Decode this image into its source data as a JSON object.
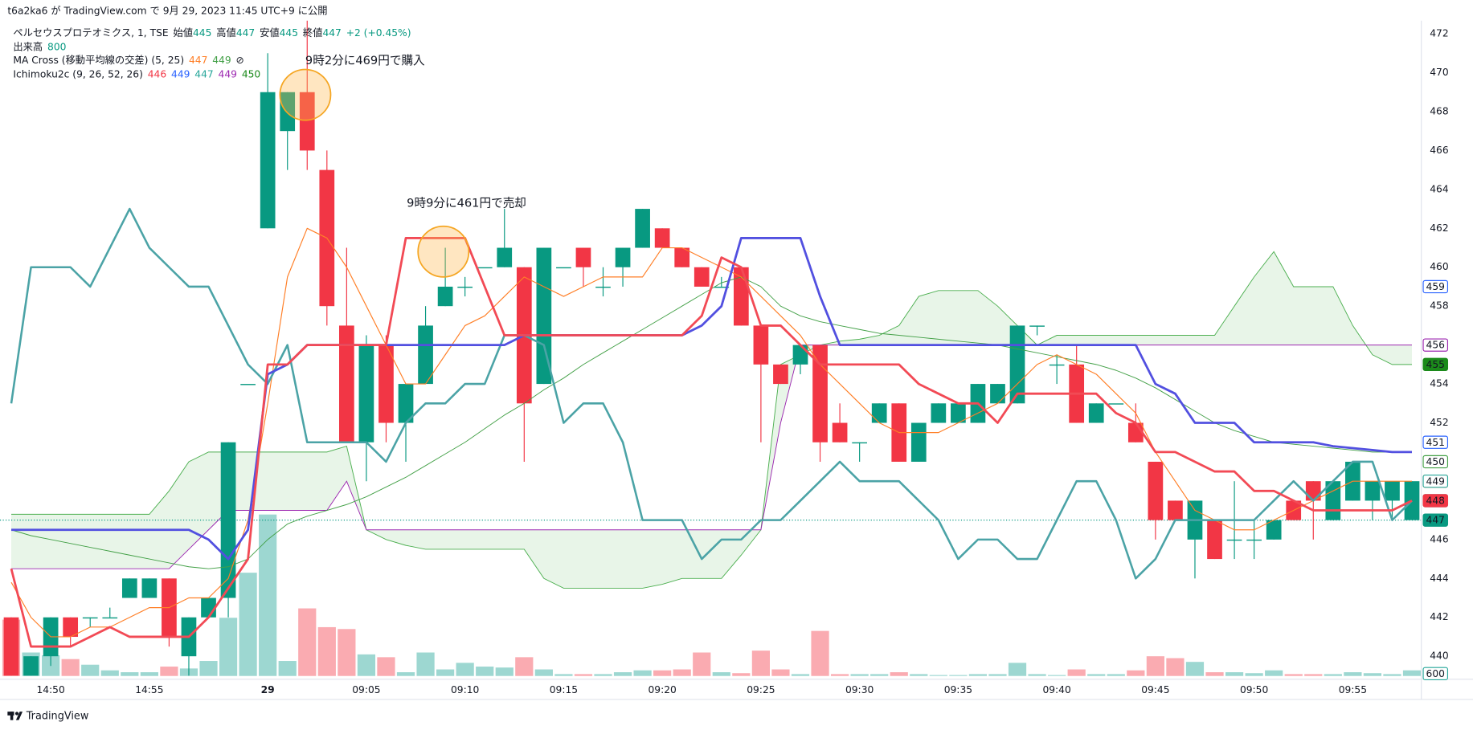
{
  "chart_data": {
    "type": "candlestick",
    "header": {
      "published": "t6a2ka6 が TradingView.com で 9月 29, 2023 11:45 UTC+9 に公開"
    },
    "legend": [
      [
        {
          "text": "ペルセウスプロテオミクス, 1, TSE",
          "color": "#131722"
        },
        {
          "text": "始値",
          "color": "#131722"
        },
        {
          "value": 445,
          "color": "#089981"
        },
        {
          "text": "高値",
          "color": "#131722"
        },
        {
          "value": 447,
          "color": "#089981"
        },
        {
          "text": "安値",
          "color": "#131722"
        },
        {
          "value": 445,
          "color": "#089981"
        },
        {
          "text": "終値",
          "color": "#131722"
        },
        {
          "value": 447,
          "color": "#089981"
        },
        {
          "text": "+2 (+0.45%)",
          "color": "#089981"
        }
      ],
      [
        {
          "text": "出来高",
          "color": "#131722"
        },
        {
          "value": 800,
          "color": "#089981"
        }
      ],
      [
        {
          "text": "MA Cross (移動平均線の交差) (5, 25)",
          "color": "#131722"
        },
        {
          "value": 447,
          "color": "#ff7f27"
        },
        {
          "value": 449,
          "color": "#43a047"
        },
        {
          "text": "⊘",
          "color": "#131722"
        }
      ],
      [
        {
          "text": "Ichimoku2c (9, 26, 52, 26)",
          "color": "#131722"
        },
        {
          "value": 446,
          "color": "#f23645"
        },
        {
          "value": 449,
          "color": "#2962ff"
        },
        {
          "value": 447,
          "color": "#26a69a"
        },
        {
          "value": 449,
          "color": "#9c27b0"
        },
        {
          "value": 450,
          "color": "#1b8a1b"
        }
      ]
    ],
    "annotations": [
      {
        "text": "9時2分に469円で購入",
        "color": "#3f35b0"
      },
      {
        "text": "9時9分に461円で売却",
        "color": "#3f35b0"
      }
    ],
    "footer": {
      "brand": "TradingView"
    },
    "categories": [
      null,
      null,
      "14:50",
      null,
      null,
      null,
      null,
      "14:55",
      null,
      null,
      null,
      null,
      null,
      "29",
      null,
      null,
      null,
      null,
      "09:05",
      null,
      null,
      null,
      null,
      "09:10",
      null,
      null,
      null,
      null,
      "09:15",
      null,
      null,
      null,
      null,
      "09:20",
      null,
      null,
      null,
      null,
      "09:25",
      null,
      null,
      null,
      null,
      "09:30",
      null,
      null,
      null,
      null,
      "09:35",
      null,
      null,
      null,
      null,
      "09:40",
      null,
      null,
      null,
      null,
      "09:45",
      null,
      null,
      null,
      null,
      "09:50",
      null,
      null,
      null,
      null,
      "09:55",
      null,
      null,
      null
    ],
    "open": [
      442,
      439,
      440,
      442,
      442,
      442,
      443,
      443,
      444,
      440,
      442,
      443,
      454,
      462,
      467,
      469,
      465,
      457,
      451,
      456,
      452,
      454,
      458,
      459,
      460,
      460,
      460,
      454,
      460,
      461,
      459,
      460,
      461,
      462,
      461,
      460,
      459,
      460,
      457,
      455,
      455,
      456,
      452,
      451,
      452,
      453,
      450,
      452,
      452,
      452,
      453,
      453,
      457,
      455,
      455,
      452,
      453,
      452,
      450,
      448,
      446,
      447,
      446,
      446,
      446,
      448,
      449,
      447,
      448,
      448,
      448,
      447
    ],
    "high": [
      442,
      440,
      442,
      442,
      442,
      442.5,
      444,
      444,
      444,
      442,
      443,
      451,
      454,
      471,
      469,
      472.7,
      466,
      461,
      456.5,
      456.5,
      454,
      458,
      461,
      459.5,
      460,
      463,
      460,
      461,
      460,
      461,
      460,
      461,
      463,
      462,
      461,
      460,
      459.5,
      460,
      457,
      455,
      456,
      456,
      453,
      451,
      453,
      453,
      452,
      453,
      453,
      454,
      454,
      457,
      457,
      455.5,
      456,
      453,
      453,
      453,
      450,
      448,
      448,
      447,
      449,
      447,
      447,
      448,
      449,
      449,
      450,
      449,
      449,
      449
    ],
    "low": [
      439,
      439,
      439.5,
      440.5,
      441.5,
      442,
      443,
      443,
      440.5,
      439,
      442,
      442,
      454,
      462,
      465,
      465,
      457,
      451,
      449,
      451,
      450,
      454,
      458,
      458.5,
      460,
      460,
      450,
      454,
      460,
      459,
      458.5,
      459,
      461,
      461,
      460,
      459,
      459,
      457,
      451,
      454,
      454.5,
      450,
      451,
      450,
      452,
      450,
      450,
      452,
      452,
      452,
      453,
      453,
      456.5,
      454,
      452,
      452,
      453,
      451,
      446,
      447,
      444,
      445,
      445,
      445,
      446,
      447,
      446,
      447,
      448,
      447,
      447,
      447
    ],
    "close": [
      439,
      440,
      442,
      441,
      442,
      442,
      444,
      444,
      441,
      442,
      443,
      451,
      454,
      469,
      469,
      466,
      458,
      451,
      456,
      452,
      454,
      457,
      459,
      459,
      460,
      461,
      453,
      461,
      460,
      460,
      459,
      461,
      463,
      461,
      460,
      459,
      459,
      457,
      455,
      454,
      456,
      451,
      451,
      451,
      453,
      450,
      452,
      453,
      453,
      454,
      454,
      457,
      457,
      455,
      452,
      453,
      453,
      451,
      447,
      447,
      448,
      445,
      446,
      446,
      447,
      447,
      448,
      449,
      450,
      449,
      449,
      449
    ],
    "up_color": "#089981",
    "down_color": "#f23645",
    "volume": [
      6000,
      2500,
      2200,
      1800,
      1200,
      600,
      400,
      400,
      1000,
      800,
      1600,
      6200,
      11000,
      17200,
      1600,
      7200,
      5200,
      5000,
      2300,
      2000,
      400,
      2500,
      700,
      1400,
      1000,
      900,
      2000,
      700,
      200,
      200,
      200,
      400,
      600,
      600,
      700,
      2500,
      400,
      300,
      2700,
      700,
      200,
      4800,
      200,
      200,
      200,
      400,
      200,
      100,
      100,
      200,
      200,
      1400,
      200,
      100,
      700,
      200,
      200,
      600,
      2100,
      1900,
      1500,
      400,
      400,
      300,
      600,
      200,
      200,
      200,
      400,
      300,
      200,
      600
    ],
    "volume_up_color": "rgba(38,166,154,0.45)",
    "volume_down_color": "rgba(242,54,69,0.42)",
    "volume_label": {
      "value": 600,
      "color": "#26a69a"
    },
    "cloud": {
      "fill": "rgba(76,175,80,0.13)",
      "span_a": {
        "color": "#4caf50",
        "values": [
          447.3,
          447.3,
          447.3,
          447.3,
          447.3,
          447.3,
          447.3,
          447.3,
          448.5,
          450,
          450.5,
          450.5,
          450.5,
          450.5,
          450.5,
          450.5,
          450.5,
          450.8,
          446.5,
          446,
          445.7,
          445.5,
          445.5,
          445.5,
          445.5,
          445.5,
          445.5,
          444,
          443.5,
          443.5,
          443.5,
          443.5,
          443.5,
          443.7,
          444,
          444,
          444,
          445.2,
          446.5,
          455,
          455.5,
          456,
          456.2,
          456.3,
          456.5,
          457,
          458.5,
          458.8,
          458.8,
          458.8,
          458,
          457,
          456,
          456.5,
          456.5,
          456.5,
          456.5,
          456.5,
          456.5,
          456.5,
          456.5,
          456.5,
          458,
          459.5,
          460.8,
          459,
          459,
          459,
          457,
          455.5,
          455,
          455
        ]
      },
      "span_b": {
        "color": "#9c27b0",
        "values": [
          444.5,
          444.5,
          444.5,
          444.5,
          444.5,
          444.5,
          444.5,
          444.5,
          444.5,
          445.5,
          446.5,
          447.5,
          447.5,
          447.5,
          447.5,
          447.5,
          447.5,
          449,
          446.5,
          446.5,
          446.5,
          446.5,
          446.5,
          446.5,
          446.5,
          446.5,
          446.5,
          446.5,
          446.5,
          446.5,
          446.5,
          446.5,
          446.5,
          446.5,
          446.5,
          446.5,
          446.5,
          446.5,
          446.5,
          452,
          456,
          456,
          456,
          456,
          456,
          456,
          456,
          456,
          456,
          456,
          456,
          456,
          456,
          456,
          456,
          456,
          456,
          456,
          456,
          456,
          456,
          456,
          456,
          456,
          456,
          456,
          456,
          456,
          456,
          456,
          456,
          456
        ]
      }
    },
    "lines": [
      {
        "color": "#43a047",
        "width": 0.8,
        "values": [
          446.5,
          446.2,
          446,
          445.8,
          445.6,
          445.4,
          445.2,
          445,
          444.8,
          444.6,
          444.5,
          444.6,
          445,
          446,
          446.8,
          447.2,
          447.5,
          447.8,
          448.2,
          448.7,
          449.2,
          449.8,
          450.4,
          451,
          451.7,
          452.4,
          453,
          453.7,
          454.3,
          455,
          455.6,
          456.2,
          456.8,
          457.4,
          458,
          458.6,
          459.2,
          459.5,
          459,
          458,
          457.5,
          457.2,
          457,
          456.8,
          456.6,
          456.5,
          456.4,
          456.3,
          456.2,
          456.1,
          456,
          455.8,
          455.6,
          455.4,
          455.2,
          455,
          454.7,
          454.3,
          453.8,
          453.2,
          452.6,
          452,
          451.6,
          451.3,
          451,
          450.9,
          450.8,
          450.7,
          450.6,
          450.5,
          450.5,
          450.5
        ]
      },
      {
        "color": "#ff7f27",
        "width": 1,
        "values": [
          443.8,
          442,
          441,
          441,
          441.5,
          441.5,
          442,
          442.5,
          442.5,
          443,
          443,
          444,
          447,
          453,
          459.5,
          462,
          461.5,
          460,
          458,
          456,
          454,
          454,
          455.5,
          457,
          457.5,
          458.5,
          459.5,
          459,
          458.5,
          459,
          459.5,
          459.5,
          459.5,
          461,
          461,
          460.5,
          460,
          459.5,
          458.5,
          457.5,
          456.5,
          455,
          454,
          453,
          452,
          451.5,
          451.5,
          451.5,
          452,
          452.5,
          453,
          454,
          455,
          455.5,
          455,
          454.5,
          453.5,
          452.5,
          450.5,
          449,
          447.5,
          447,
          446.5,
          446.5,
          447,
          447.5,
          448,
          448.5,
          449,
          449,
          449,
          449
        ]
      },
      {
        "color": "#4ba3a6",
        "width": 2.2,
        "values": [
          453,
          460,
          460,
          460,
          459,
          461,
          463,
          461,
          460,
          459,
          459,
          457,
          455,
          454,
          456,
          451,
          451,
          451,
          451,
          450,
          452,
          453,
          453,
          454,
          454,
          456.5,
          456.5,
          456,
          452,
          453,
          453,
          451,
          447,
          447,
          447,
          445,
          446,
          446,
          447,
          447,
          448,
          449,
          450,
          449,
          449,
          449,
          448,
          447,
          445,
          446,
          446,
          445,
          445,
          447,
          449,
          449,
          447,
          444,
          445,
          447,
          447,
          447,
          447,
          447,
          448,
          449,
          448,
          449,
          450,
          450,
          447,
          448
        ]
      },
      {
        "color": "#5250e0",
        "width": 2.4,
        "values": [
          446.5,
          446.5,
          446.5,
          446.5,
          446.5,
          446.5,
          446.5,
          446.5,
          446.5,
          446.5,
          446,
          445,
          446.5,
          454.5,
          455,
          456,
          456,
          456,
          456,
          456,
          456,
          456,
          456,
          456,
          456,
          456,
          456.5,
          456.5,
          456.5,
          456.5,
          456.5,
          456.5,
          456.5,
          456.5,
          456.5,
          457,
          458,
          461.5,
          461.5,
          461.5,
          461.5,
          458.5,
          456,
          456,
          456,
          456,
          456,
          456,
          456,
          456,
          456,
          456,
          456,
          456,
          456,
          456,
          456,
          456,
          454,
          453.5,
          452,
          452,
          452,
          451,
          451,
          451,
          451,
          450.8,
          450.7,
          450.6,
          450.5,
          450.5
        ]
      },
      {
        "color": "#f24a55",
        "width": 2.4,
        "values": [
          444.5,
          440.5,
          440.5,
          440.5,
          441,
          441.5,
          441,
          441,
          441,
          441,
          442,
          443.5,
          445,
          455,
          455,
          456,
          456,
          456,
          456,
          456,
          461.5,
          461.5,
          461.5,
          461.5,
          459,
          456.5,
          456.5,
          456.5,
          456.5,
          456.5,
          456.5,
          456.5,
          456.5,
          456.5,
          456.5,
          457.5,
          460.5,
          460,
          457,
          457,
          456,
          455,
          455,
          455,
          455,
          455,
          454,
          453.5,
          453,
          453,
          452,
          453.5,
          453.5,
          453.5,
          453.5,
          453.5,
          452.5,
          452,
          450.5,
          450.5,
          450,
          449.5,
          449.5,
          448.5,
          448.5,
          448,
          447.5,
          447.5,
          447.5,
          447.5,
          447.5,
          448
        ]
      }
    ],
    "price_labels": [
      {
        "value": 459,
        "color": "#2962ff",
        "filled": false
      },
      {
        "value": 456,
        "color": "#9c27b0",
        "filled": false
      },
      {
        "value": 455,
        "color": "#1b8a1b",
        "filled": true
      },
      {
        "value": 451,
        "color": "#2962ff",
        "filled": false
      },
      {
        "value": 450,
        "color": "#43a047",
        "filled": false
      },
      {
        "value": 449,
        "color": "#ff7f27",
        "filled": false
      },
      {
        "value": 449,
        "color": "#26a69a",
        "filled": false
      },
      {
        "value": 448,
        "color": "#26a69a",
        "filled": false
      },
      {
        "value": 448,
        "color": "#f23645",
        "filled": true
      },
      {
        "value": 447,
        "color": "#089981",
        "filled": true,
        "dotted": true
      }
    ],
    "ylim": [
      439,
      473
    ],
    "yticks": [
      440,
      442,
      444,
      446,
      448,
      450,
      452,
      454,
      456,
      458,
      460,
      462,
      464,
      466,
      468,
      470,
      472
    ],
    "grid": false
  }
}
